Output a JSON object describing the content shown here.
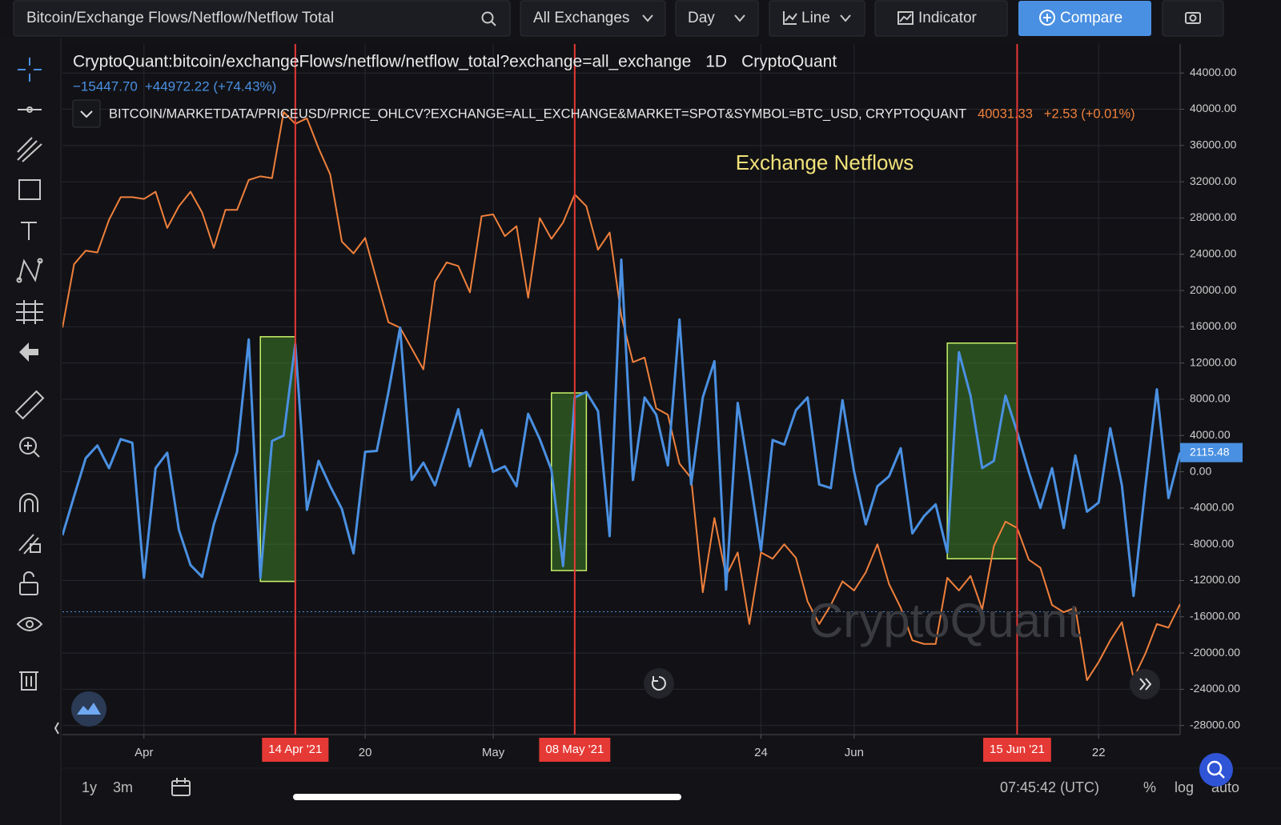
{
  "toolbar": {
    "search": "Bitcoin/Exchange Flows/Netflow/Netflow Total",
    "exchange": "All Exchanges",
    "interval": "Day",
    "style": "Line",
    "indicator": "Indicator",
    "compare": "Compare"
  },
  "chart_data": {
    "type": "line",
    "interval": "1D",
    "source": "CryptoQuant",
    "annotation": "Exchange Netflows",
    "watermark": "CryptoQuant",
    "legend": {
      "low": "−15447.70",
      "change": "+44972.22 (+74.43%)",
      "price": "40031.33",
      "price_change": "+2.53 (+0.01%)"
    },
    "x": [
      "2021-03-25",
      "2021-03-26",
      "2021-03-27",
      "2021-03-28",
      "2021-03-29",
      "2021-03-30",
      "2021-03-31",
      "2021-04-01",
      "2021-04-02",
      "2021-04-03",
      "2021-04-04",
      "2021-04-05",
      "2021-04-06",
      "2021-04-07",
      "2021-04-08",
      "2021-04-09",
      "2021-04-10",
      "2021-04-11",
      "2021-04-12",
      "2021-04-13",
      "2021-04-14",
      "2021-04-15",
      "2021-04-16",
      "2021-04-17",
      "2021-04-18",
      "2021-04-19",
      "2021-04-20",
      "2021-04-21",
      "2021-04-22",
      "2021-04-23",
      "2021-04-24",
      "2021-04-25",
      "2021-04-26",
      "2021-04-27",
      "2021-04-28",
      "2021-04-29",
      "2021-04-30",
      "2021-05-01",
      "2021-05-02",
      "2021-05-03",
      "2021-05-04",
      "2021-05-05",
      "2021-05-06",
      "2021-05-07",
      "2021-05-08",
      "2021-05-09",
      "2021-05-10",
      "2021-05-11",
      "2021-05-12",
      "2021-05-13",
      "2021-05-14",
      "2021-05-15",
      "2021-05-16",
      "2021-05-17",
      "2021-05-18",
      "2021-05-19",
      "2021-05-20",
      "2021-05-21",
      "2021-05-22",
      "2021-05-23",
      "2021-05-24",
      "2021-05-25",
      "2021-05-26",
      "2021-05-27",
      "2021-05-28",
      "2021-05-29",
      "2021-05-30",
      "2021-05-31",
      "2021-06-01",
      "2021-06-02",
      "2021-06-03",
      "2021-06-04",
      "2021-06-05",
      "2021-06-06",
      "2021-06-07",
      "2021-06-08",
      "2021-06-09",
      "2021-06-10",
      "2021-06-11",
      "2021-06-12",
      "2021-06-13",
      "2021-06-14",
      "2021-06-15",
      "2021-06-16",
      "2021-06-17",
      "2021-06-18",
      "2021-06-19",
      "2021-06-20",
      "2021-06-21",
      "2021-06-22",
      "2021-06-23",
      "2021-06-24",
      "2021-06-25",
      "2021-06-26",
      "2021-06-27",
      "2021-06-28",
      "2021-06-29"
    ],
    "xlim": [
      "2021-03-25",
      "2021-06-29"
    ],
    "xticks": [
      {
        "value": "2021-04-01",
        "label": "Apr"
      },
      {
        "value": "2021-04-20",
        "label": "20"
      },
      {
        "value": "2021-05-01",
        "label": "May"
      },
      {
        "value": "2021-05-24",
        "label": "24"
      },
      {
        "value": "2021-06-01",
        "label": "Jun"
      },
      {
        "value": "2021-06-22",
        "label": "22"
      }
    ],
    "ylim": [
      -29000,
      47200
    ],
    "yticks": [
      {
        "value": 44000,
        "label": "44000.00"
      },
      {
        "value": 40000,
        "label": "40000.00"
      },
      {
        "value": 36000,
        "label": "36000.00"
      },
      {
        "value": 32000,
        "label": "32000.00"
      },
      {
        "value": 28000,
        "label": "28000.00"
      },
      {
        "value": 24000,
        "label": "24000.00"
      },
      {
        "value": 20000,
        "label": "20000.00"
      },
      {
        "value": 16000,
        "label": "16000.00"
      },
      {
        "value": 12000,
        "label": "12000.00"
      },
      {
        "value": 8000,
        "label": "8000.00"
      },
      {
        "value": 4000,
        "label": "4000.00"
      },
      {
        "value": 0,
        "label": "0.00"
      },
      {
        "value": -4000,
        "label": "-4000.00"
      },
      {
        "value": -8000,
        "label": "-8000.00"
      },
      {
        "value": -12000,
        "label": "-12000.00"
      },
      {
        "value": -16000,
        "label": "-16000.00"
      },
      {
        "value": -20000,
        "label": "-20000.00"
      },
      {
        "value": -24000,
        "label": "-24000.00"
      },
      {
        "value": -28000,
        "label": "-28000.00"
      }
    ],
    "grid": true,
    "series": [
      {
        "name": "CryptoQuant:bitcoin/exchangeFlows/netflow/netflow_total?exchange=all_exchange",
        "color": "#4a90e2",
        "values": [
          -7000,
          -2700,
          1500,
          2900,
          400,
          3600,
          3200,
          -11700,
          400,
          2100,
          -6400,
          -10300,
          -11600,
          -5800,
          -1800,
          2200,
          14600,
          -11700,
          3400,
          4000,
          14100,
          -4200,
          1200,
          -1600,
          -4100,
          -9000,
          2200,
          2300,
          8800,
          15900,
          -900,
          1000,
          -1500,
          2600,
          6900,
          600,
          4600,
          0,
          600,
          -1600,
          6400,
          3600,
          200,
          -10400,
          8200,
          8800,
          6700,
          -7100,
          23400,
          -900,
          8200,
          6300,
          700,
          16800,
          -1400,
          8200,
          12200,
          -13000,
          7600,
          -300,
          -8700,
          3500,
          3000,
          6800,
          8200,
          -1400,
          -1800,
          7900,
          0,
          -5800,
          -1600,
          -500,
          2600,
          -6800,
          -4900,
          -3600,
          -8900,
          13200,
          8400,
          400,
          1200,
          8400,
          4400,
          0,
          -4000,
          400,
          -6200,
          1800,
          -4400,
          -3400,
          4800,
          -1500,
          -13700,
          -1800,
          9100,
          -2900,
          2115.48
        ]
      },
      {
        "name": "BITCOIN/MARKETDATA/PRICEUSD/PRICE_OHLCV?EXCHANGE=ALL_EXCHANGE&MARKET=SPOT&SYMBOL=BTC_USD, CRYPTOQUANT",
        "color": "#f0803c",
        "values": [
          15900,
          22900,
          24400,
          24200,
          27800,
          30300,
          30300,
          30100,
          30900,
          26900,
          29300,
          30900,
          28600,
          24700,
          28900,
          28900,
          32200,
          32600,
          32400,
          39700,
          38400,
          39000,
          35700,
          32800,
          25400,
          24100,
          25800,
          21100,
          16500,
          15900,
          13600,
          11300,
          21000,
          23100,
          22700,
          19800,
          28200,
          28400,
          26000,
          27100,
          19200,
          28000,
          25700,
          27500,
          30600,
          29300,
          24500,
          26400,
          17200,
          12100,
          12600,
          7000,
          6300,
          900,
          -700,
          -13300,
          -5100,
          -11500,
          -8900,
          -16800,
          -8900,
          -9600,
          -8000,
          -9500,
          -14300,
          -16800,
          -14700,
          -12100,
          -13100,
          -11100,
          -8000,
          -12400,
          -15000,
          -18600,
          -19000,
          -19000,
          -11700,
          -13100,
          -11500,
          -15200,
          -8200,
          -5500,
          -6200,
          -9700,
          -10600,
          -14700,
          -15500,
          -15000,
          -23000,
          -21000,
          -18600,
          -16600,
          -22800,
          -20100,
          -16800,
          -17200,
          -14600
        ]
      }
    ],
    "reference_line": -15447.7,
    "markers": [
      {
        "x": "2021-04-14",
        "label": "14 Apr '21"
      },
      {
        "x": "2021-05-08",
        "label": "08 May '21"
      },
      {
        "x": "2021-06-15",
        "label": "15 Jun '21"
      }
    ],
    "marker_color": "#e53935",
    "highlights": [
      {
        "x": [
          "2021-04-11",
          "2021-04-14"
        ],
        "y": [
          -12100,
          14900
        ]
      },
      {
        "x": [
          "2021-05-06",
          "2021-05-09"
        ],
        "y": [
          -10900,
          8700
        ]
      },
      {
        "x": [
          "2021-06-09",
          "2021-06-15"
        ],
        "y": [
          -9600,
          14200
        ]
      }
    ]
  },
  "footer": {
    "range_1": "1y",
    "range_2": "3m",
    "time": "07:45:42 (UTC)",
    "percent": "%",
    "log": "log",
    "auto": "auto"
  }
}
